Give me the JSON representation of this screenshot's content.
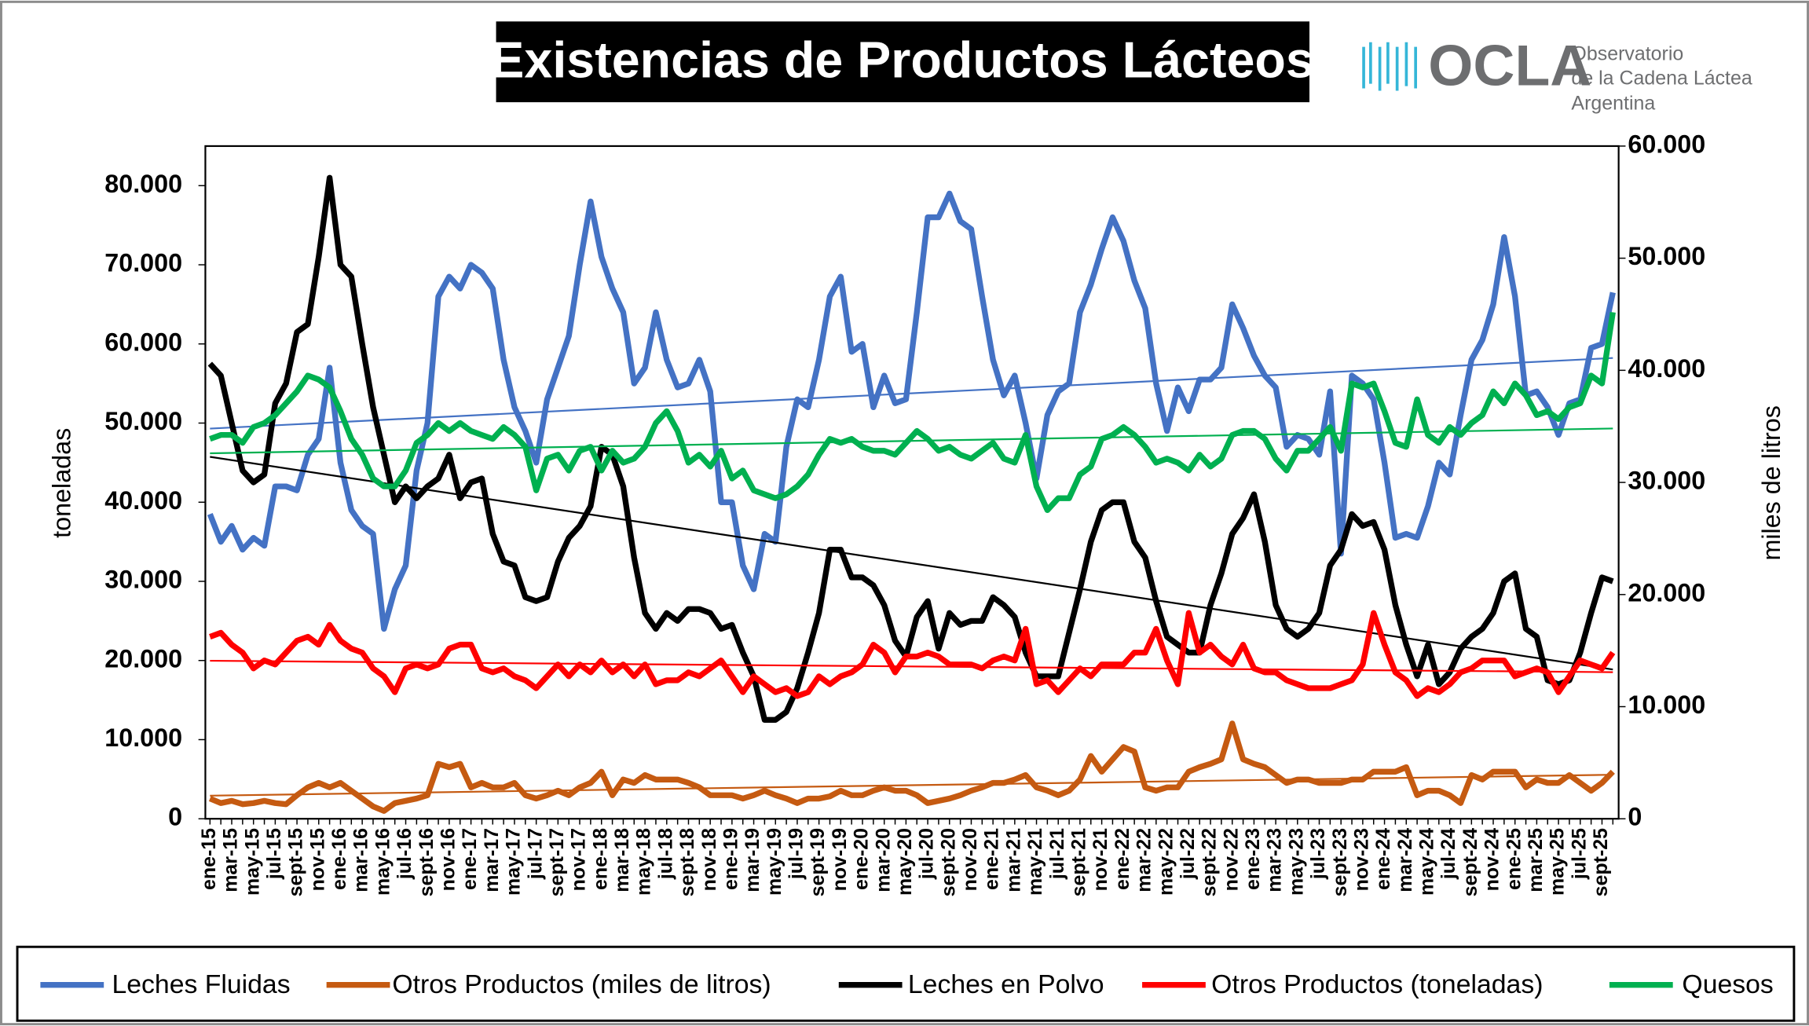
{
  "logo": {
    "name": "OCLA",
    "line1": "Observatorio",
    "line2": "de la Cadena Láctea",
    "line3": "Argentina"
  },
  "chart_data": {
    "type": "line",
    "title": "Existencias de Productos Lácteos",
    "ylabel": "toneladas",
    "y2label": "miles de litros",
    "categories": [
      "ene-15",
      null,
      "mar-15",
      null,
      "may-15",
      null,
      "jul-15",
      null,
      "sept-15",
      null,
      "nov-15",
      null,
      "ene-16",
      null,
      "mar-16",
      null,
      "may-16",
      null,
      "jul-16",
      null,
      "sept-16",
      null,
      "nov-16",
      null,
      "ene-17",
      null,
      "mar-17",
      null,
      "may-17",
      null,
      "jul-17",
      null,
      "sept-17",
      null,
      "nov-17",
      null,
      "ene-18",
      null,
      "mar-18",
      null,
      "may-18",
      null,
      "jul-18",
      null,
      "sept-18",
      null,
      "nov-18",
      null,
      "ene-19",
      null,
      "mar-19",
      null,
      "may-19",
      null,
      "jul-19",
      null,
      "sept-19",
      null,
      "nov-19",
      null,
      "ene-20",
      null,
      "mar-20",
      null,
      "may-20",
      null,
      "jul-20",
      null,
      "sept-20",
      null,
      "nov-20",
      null,
      "ene-21",
      null,
      "mar-21",
      null,
      "may-21",
      null,
      "jul-21",
      null,
      "sept-21",
      null,
      "nov-21",
      null,
      "ene-22",
      null,
      "mar-22",
      null,
      "may-22",
      null,
      "jul-22",
      null,
      "sept-22",
      null,
      "nov-22",
      null,
      "ene-23",
      null,
      "mar-23",
      null,
      "may-23",
      null,
      "jul-23",
      null,
      "sept-23",
      null,
      "nov-23",
      null,
      "ene-24",
      null,
      "mar-24",
      null,
      "may-24",
      null,
      "jul-24",
      null,
      "sept-24",
      null,
      "nov-24",
      null,
      "ene-25",
      null,
      "mar-25",
      null,
      "may-25",
      null,
      "jul-25",
      null,
      "sept-25",
      null
    ],
    "series": [
      {
        "name": "Leches Fluidas",
        "color": "#4472c4",
        "values": [
          38500,
          35000,
          37000,
          34000,
          35500,
          34500,
          42000,
          42000,
          41500,
          46000,
          48000,
          57000,
          45000,
          39000,
          37000,
          36000,
          24000,
          29000,
          32000,
          44000,
          50000,
          66000,
          68500,
          67000,
          70000,
          69000,
          67000,
          58000,
          52000,
          49000,
          45000,
          53000,
          57000,
          61000,
          70000,
          78000,
          71000,
          67000,
          64000,
          55000,
          57000,
          64000,
          58000,
          54500,
          55000,
          58000,
          54000,
          40000,
          40000,
          32000,
          29000,
          36000,
          35000,
          47000,
          53000,
          52000,
          58000,
          66000,
          68500,
          59000,
          60000,
          52000,
          56000,
          52500,
          53000,
          64000,
          76000,
          76000,
          79000,
          75500,
          74500,
          66000,
          58000,
          53500,
          56000,
          50000,
          43000,
          51000,
          54000,
          55000,
          64000,
          67500,
          72000,
          76000,
          73000,
          68000,
          64500,
          55000,
          49000,
          54500,
          51500,
          55500,
          55500,
          57000,
          65000,
          62000,
          58500,
          56000,
          54500,
          47000,
          48500,
          48000,
          46000,
          54000,
          33500,
          56000,
          55000,
          53000,
          45000,
          35500,
          36000,
          35500,
          39500,
          45000,
          43500,
          51000,
          58000,
          60500,
          65000,
          73500,
          66000,
          53500,
          54000,
          52000,
          48500,
          52500,
          53000,
          59500,
          60000,
          66500
        ]
      },
      {
        "name": "Otros Productos (miles de litros)",
        "color": "#c55a11",
        "axis": "y2",
        "values": [
          1800,
          1400,
          1600,
          1300,
          1400,
          1600,
          1400,
          1300,
          2100,
          2800,
          3200,
          2800,
          3200,
          2500,
          1800,
          1100,
          700,
          1400,
          1600,
          1800,
          2100,
          4900,
          4600,
          4900,
          2800,
          3200,
          2800,
          2800,
          3200,
          2100,
          1800,
          2100,
          2500,
          2100,
          2800,
          3200,
          4200,
          2100,
          3500,
          3200,
          3900,
          3500,
          3500,
          3500,
          3200,
          2800,
          2100,
          2100,
          2100,
          1800,
          2100,
          2500,
          2100,
          1800,
          1400,
          1800,
          1800,
          2000,
          2500,
          2100,
          2100,
          2500,
          2800,
          2500,
          2500,
          2100,
          1400,
          1600,
          1800,
          2100,
          2500,
          2800,
          3200,
          3200,
          3500,
          3900,
          2800,
          2500,
          2100,
          2500,
          3500,
          5600,
          4200,
          5300,
          6400,
          6000,
          2800,
          2500,
          2800,
          2800,
          4200,
          4600,
          4900,
          5300,
          8500,
          5300,
          4900,
          4600,
          3900,
          3200,
          3500,
          3500,
          3200,
          3200,
          3200,
          3500,
          3500,
          4200,
          4200,
          4200,
          4600,
          2100,
          2500,
          2500,
          2100,
          1400,
          3900,
          3500,
          4200,
          4200,
          4200,
          2800,
          3500,
          3200,
          3200,
          3900,
          3200,
          2500,
          3200,
          4200
        ]
      },
      {
        "name": "Leches en Polvo",
        "color": "#000000",
        "values": [
          57500,
          56000,
          50000,
          44000,
          42500,
          43500,
          52500,
          55000,
          61500,
          62500,
          71000,
          81000,
          70000,
          68500,
          60000,
          52000,
          46000,
          40000,
          42000,
          40500,
          42000,
          43000,
          46000,
          40500,
          42500,
          43000,
          36000,
          32500,
          32000,
          28000,
          27500,
          28000,
          32500,
          35500,
          37000,
          39500,
          47000,
          46000,
          42000,
          33000,
          26000,
          24000,
          26000,
          25000,
          26500,
          26500,
          26000,
          24000,
          24500,
          21000,
          18000,
          12500,
          12500,
          13500,
          16500,
          21000,
          26000,
          34000,
          34000,
          30500,
          30500,
          29500,
          27000,
          22500,
          20500,
          25500,
          27500,
          21500,
          26000,
          24500,
          25000,
          25000,
          28000,
          27000,
          25500,
          21000,
          18000,
          18000,
          18000,
          23500,
          29000,
          35000,
          39000,
          40000,
          40000,
          35000,
          33000,
          27500,
          23000,
          22000,
          21000,
          21000,
          27000,
          31000,
          36000,
          38000,
          41000,
          35000,
          27000,
          24000,
          23000,
          24000,
          26000,
          32000,
          34000,
          38500,
          37000,
          37500,
          34000,
          27000,
          22000,
          18000,
          22000,
          17000,
          18500,
          21500,
          23000,
          24000,
          26000,
          30000,
          31000,
          24000,
          23000,
          17500,
          17000,
          17500,
          21000,
          26000,
          30500,
          30000
        ]
      },
      {
        "name": "Otros Productos (toneladas)",
        "color": "#ff0000",
        "values": [
          23000,
          23500,
          22000,
          21000,
          19000,
          20000,
          19500,
          21000,
          22500,
          23000,
          22000,
          24500,
          22500,
          21500,
          21000,
          19000,
          18000,
          16000,
          19000,
          19500,
          19000,
          19500,
          21500,
          22000,
          22000,
          19000,
          18500,
          19000,
          18000,
          17500,
          16500,
          18000,
          19500,
          18000,
          19500,
          18500,
          20000,
          18500,
          19500,
          18000,
          19500,
          17000,
          17500,
          17500,
          18500,
          18000,
          19000,
          20000,
          18000,
          16000,
          18000,
          17000,
          16000,
          16500,
          15500,
          16000,
          18000,
          17000,
          18000,
          18500,
          19500,
          22000,
          21000,
          18500,
          20500,
          20500,
          21000,
          20500,
          19500,
          19500,
          19500,
          19000,
          20000,
          20500,
          20000,
          24000,
          17000,
          17500,
          16000,
          17500,
          19000,
          18000,
          19500,
          19500,
          19500,
          21000,
          21000,
          24000,
          20000,
          17000,
          26000,
          21000,
          22000,
          20500,
          19500,
          22000,
          19000,
          18500,
          18500,
          17500,
          17000,
          16500,
          16500,
          16500,
          17000,
          17500,
          19500,
          26000,
          22000,
          18500,
          17500,
          15500,
          16500,
          16000,
          17000,
          18500,
          19000,
          20000,
          20000,
          20000,
          18000,
          18500,
          19000,
          18500,
          16000,
          18000,
          20000,
          19500,
          19000,
          21000
        ]
      },
      {
        "name": "Quesos",
        "color": "#00b050",
        "values": [
          48000,
          48500,
          48500,
          47500,
          49500,
          50000,
          51000,
          52500,
          54000,
          56000,
          55500,
          54500,
          51500,
          48000,
          46000,
          43000,
          42000,
          42000,
          44000,
          47500,
          48500,
          50000,
          49000,
          50000,
          49000,
          48500,
          48000,
          49500,
          48500,
          47000,
          41500,
          45500,
          46000,
          44000,
          46500,
          47000,
          44000,
          46500,
          45000,
          45500,
          47000,
          50000,
          51500,
          49000,
          45000,
          46000,
          44500,
          46500,
          43000,
          44000,
          41500,
          41000,
          40500,
          41000,
          42000,
          43500,
          46000,
          48000,
          47500,
          48000,
          47000,
          46500,
          46500,
          46000,
          47500,
          49000,
          48000,
          46500,
          47000,
          46000,
          45500,
          46500,
          47500,
          45500,
          45000,
          48500,
          42000,
          39000,
          40500,
          40500,
          43500,
          44500,
          48000,
          48500,
          49500,
          48500,
          47000,
          45000,
          45500,
          45000,
          44000,
          46000,
          44500,
          45500,
          48500,
          49000,
          49000,
          48000,
          45500,
          44000,
          46500,
          46500,
          48000,
          49500,
          46500,
          55000,
          54500,
          55000,
          51500,
          47500,
          47000,
          53000,
          48500,
          47500,
          49500,
          48500,
          50000,
          51000,
          54000,
          52500,
          55000,
          53500,
          51000,
          51500,
          50500,
          52000,
          52500,
          56000,
          55000,
          64000
        ]
      }
    ],
    "ylim": [
      0,
      85000
    ],
    "yticks": [
      0,
      {
        "value": 10000,
        "label": "10.000"
      },
      {
        "value": 20000,
        "label": "20.000"
      },
      {
        "value": 30000,
        "label": "30.000"
      },
      {
        "value": 40000,
        "label": "40.000"
      },
      {
        "value": 50000,
        "label": "50.000"
      },
      {
        "value": 60000,
        "label": "60.000"
      },
      {
        "value": 70000,
        "label": "70.000"
      },
      {
        "value": 80000,
        "label": "80.000"
      }
    ],
    "y2lim": [
      0,
      60000
    ],
    "y2ticks": [
      0,
      {
        "value": 10000,
        "label": "10.000"
      },
      {
        "value": 20000,
        "label": "20.000"
      },
      {
        "value": 30000,
        "label": "30.000"
      },
      {
        "value": 40000,
        "label": "40.000"
      },
      {
        "value": 50000,
        "label": "50.000"
      },
      {
        "value": 60000,
        "label": "60.000"
      }
    ],
    "trendline": true,
    "grid": false,
    "legend": "bottom"
  }
}
